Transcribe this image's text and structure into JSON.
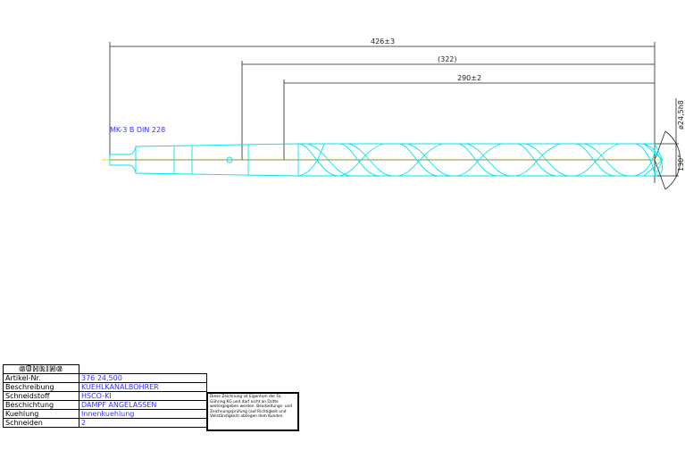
{
  "drawing": {
    "dimensions": {
      "overall_length": "426±3",
      "reference_length": "(322)",
      "flute_length": "290±2",
      "diameter": "ø24,5h8",
      "point_angle": "130°"
    },
    "shank_label": "MK-3 B DIN 228",
    "colors": {
      "outline": "#00e5ee",
      "centerline": "#e8e000",
      "dimension": "#222222",
      "text": "#3333ff",
      "cutting_edge": "#ff4040"
    }
  },
  "title_block": {
    "logo": "GÜHRING",
    "rows": [
      {
        "label": "Artikel-Nr.",
        "value": "376 24,500"
      },
      {
        "label": "Beschreibung",
        "value": "KUEHLKANALBOHRER"
      },
      {
        "label": "Schneidstoff",
        "value": "HSCO-KI"
      },
      {
        "label": "Beschichtung",
        "value": "DAMPF ANGELASSEN"
      },
      {
        "label": "Kuehlung",
        "value": "Innenkuehlung"
      },
      {
        "label": "Schneiden",
        "value": "2"
      }
    ],
    "note": "Diese Zeichnung ist Eigentum der Fa. Gühring KG und darf nicht an Dritte weitergegeben werden. Bearbeitungs- und Zeichnungsprüfung (auf Richtigkeit und Vollständigkeit) obliegen dem Kunden."
  }
}
